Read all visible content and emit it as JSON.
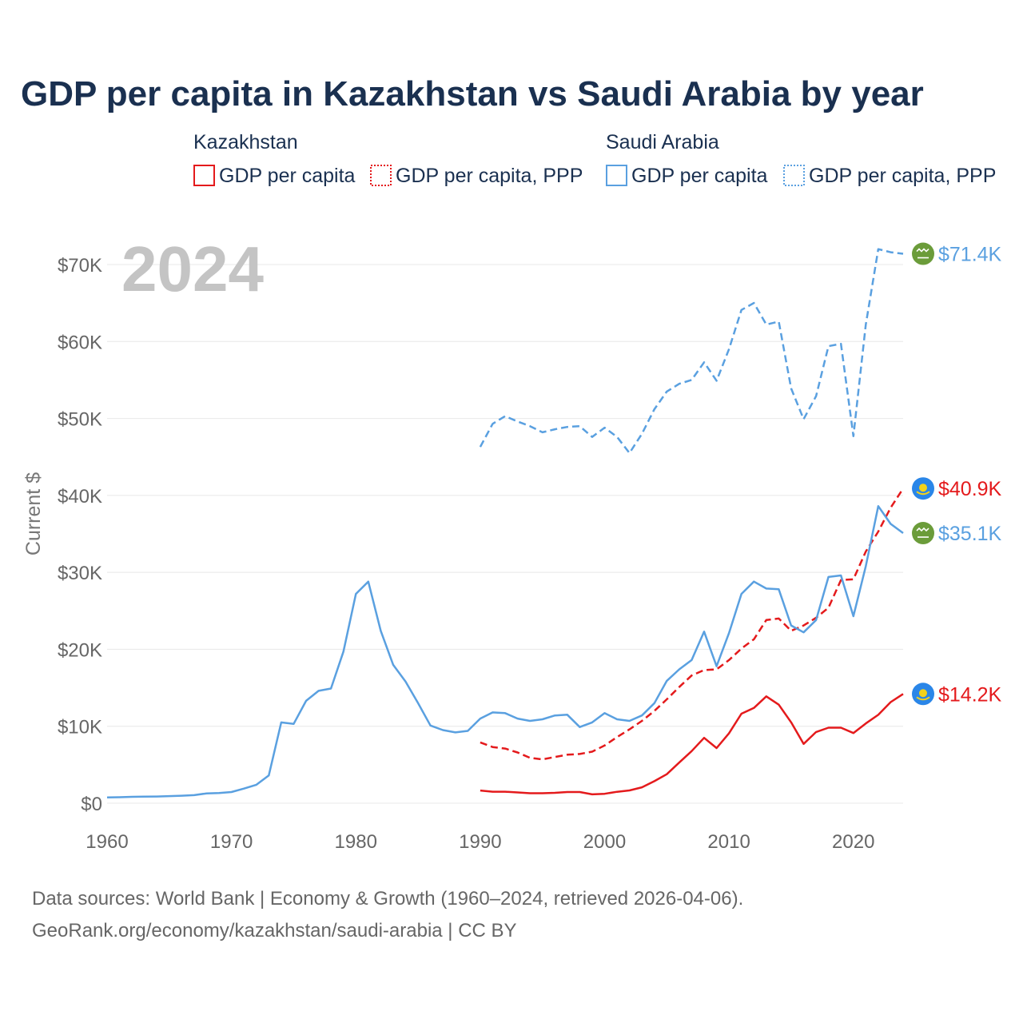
{
  "title": "GDP per capita in Kazakhstan vs Saudi Arabia by year",
  "year_watermark": "2024",
  "legend": {
    "groups": [
      {
        "name": "Kazakhstan",
        "color": "#e41a1c",
        "items": [
          "GDP per capita",
          "GDP per capita, PPP"
        ]
      },
      {
        "name": "Saudi Arabia",
        "color": "#5aa0e0",
        "items": [
          "GDP per capita",
          "GDP per capita, PPP"
        ]
      }
    ]
  },
  "source": {
    "line1": "Data sources: World Bank | Economy & Growth (1960–2024, retrieved 2026-04-06).",
    "line2": "GeoRank.org/economy/kazakhstan/saudi-arabia | CC BY"
  },
  "flags": {
    "kazakhstan": {
      "icon": "kazakhstan-flag-icon",
      "color": "#2a86e8",
      "mark_color": "#f2d21b"
    },
    "saudi_arabia": {
      "icon": "saudi-arabia-flag-icon",
      "color": "#6b9c3a",
      "mark_color": "#ffffff"
    }
  },
  "chart_data": {
    "type": "line",
    "ylabel": "Current $",
    "xlim": [
      1960,
      2024
    ],
    "ylim": [
      0,
      70000
    ],
    "x_ticks": [
      "1960",
      "1970",
      "1980",
      "1990",
      "2000",
      "2010",
      "2020"
    ],
    "y_ticks": [
      "$0",
      "$10K",
      "$20K",
      "$30K",
      "$40K",
      "$50K",
      "$60K",
      "$70K"
    ],
    "series": [
      {
        "name": "Saudi Arabia GDP per capita, PPP",
        "country": "saudi_arabia",
        "color": "#5aa0e0",
        "dash": "dashed",
        "end_label": "$71.4K",
        "x": [
          1990,
          1991,
          1992,
          1993,
          1994,
          1995,
          1996,
          1997,
          1998,
          1999,
          2000,
          2001,
          2002,
          2003,
          2004,
          2005,
          2006,
          2007,
          2008,
          2009,
          2010,
          2011,
          2012,
          2013,
          2014,
          2015,
          2016,
          2017,
          2018,
          2019,
          2020,
          2021,
          2022,
          2023,
          2024
        ],
        "values": [
          46300,
          49300,
          50300,
          49600,
          49000,
          48200,
          48600,
          48900,
          49000,
          47600,
          48800,
          47600,
          45500,
          48000,
          51200,
          53500,
          54500,
          55000,
          57300,
          54900,
          59000,
          64100,
          65000,
          62200,
          62600,
          53900,
          49900,
          52900,
          59400,
          59700,
          47700,
          62200,
          72000,
          71600,
          71400
        ]
      },
      {
        "name": "Kazakhstan GDP per capita, PPP",
        "country": "kazakhstan",
        "color": "#e41a1c",
        "dash": "dashed",
        "end_label": "$40.9K",
        "x": [
          1990,
          1991,
          1992,
          1993,
          1994,
          1995,
          1996,
          1997,
          1998,
          1999,
          2000,
          2001,
          2002,
          2003,
          2004,
          2005,
          2006,
          2007,
          2008,
          2009,
          2010,
          2011,
          2012,
          2013,
          2014,
          2015,
          2016,
          2017,
          2018,
          2019,
          2020,
          2021,
          2022,
          2023,
          2024
        ],
        "values": [
          7900,
          7300,
          7100,
          6600,
          5900,
          5700,
          6000,
          6300,
          6400,
          6700,
          7500,
          8600,
          9600,
          10700,
          12000,
          13500,
          15100,
          16600,
          17300,
          17400,
          18600,
          20100,
          21300,
          23800,
          24000,
          22400,
          23100,
          24100,
          25400,
          29000,
          29100,
          32700,
          35300,
          38400,
          40900
        ]
      },
      {
        "name": "Saudi Arabia GDP per capita",
        "country": "saudi_arabia",
        "color": "#5aa0e0",
        "dash": "solid",
        "end_label": "$35.1K",
        "x": [
          1960,
          1961,
          1962,
          1963,
          1964,
          1965,
          1966,
          1967,
          1968,
          1969,
          1970,
          1971,
          1972,
          1973,
          1974,
          1975,
          1976,
          1977,
          1978,
          1979,
          1980,
          1981,
          1982,
          1983,
          1984,
          1985,
          1986,
          1987,
          1988,
          1989,
          1990,
          1991,
          1992,
          1993,
          1994,
          1995,
          1996,
          1997,
          1998,
          1999,
          2000,
          2001,
          2002,
          2003,
          2004,
          2005,
          2006,
          2007,
          2008,
          2009,
          2010,
          2011,
          2012,
          2013,
          2014,
          2015,
          2016,
          2017,
          2018,
          2019,
          2020,
          2021,
          2022,
          2023,
          2024
        ],
        "values": [
          750,
          780,
          830,
          850,
          870,
          920,
          980,
          1050,
          1280,
          1320,
          1450,
          1900,
          2400,
          3600,
          10500,
          10300,
          13300,
          14600,
          14900,
          19700,
          27200,
          28800,
          22400,
          18000,
          15800,
          13000,
          10100,
          9500,
          9200,
          9400,
          11000,
          11800,
          11700,
          11000,
          10700,
          10900,
          11400,
          11500,
          9900,
          10500,
          11700,
          10900,
          10700,
          11400,
          13000,
          15900,
          17400,
          18600,
          22300,
          17800,
          22100,
          27200,
          28800,
          27900,
          27800,
          23100,
          22200,
          23800,
          29400,
          29600,
          24300,
          30800,
          38600,
          36300,
          35100
        ]
      },
      {
        "name": "Kazakhstan GDP per capita",
        "country": "kazakhstan",
        "color": "#e41a1c",
        "dash": "solid",
        "end_label": "$14.2K",
        "x": [
          1990,
          1991,
          1992,
          1993,
          1994,
          1995,
          1996,
          1997,
          1998,
          1999,
          2000,
          2001,
          2002,
          2003,
          2004,
          2005,
          2006,
          2007,
          2008,
          2009,
          2010,
          2011,
          2012,
          2013,
          2014,
          2015,
          2016,
          2017,
          2018,
          2019,
          2020,
          2021,
          2022,
          2023,
          2024
        ],
        "values": [
          1650,
          1500,
          1500,
          1400,
          1300,
          1300,
          1350,
          1450,
          1450,
          1150,
          1230,
          1490,
          1660,
          2070,
          2870,
          3770,
          5290,
          6770,
          8500,
          7170,
          9080,
          11630,
          12380,
          13890,
          12810,
          10510,
          7710,
          9250,
          9810,
          9810,
          9120,
          10370,
          11490,
          13140,
          14200
        ]
      }
    ]
  }
}
